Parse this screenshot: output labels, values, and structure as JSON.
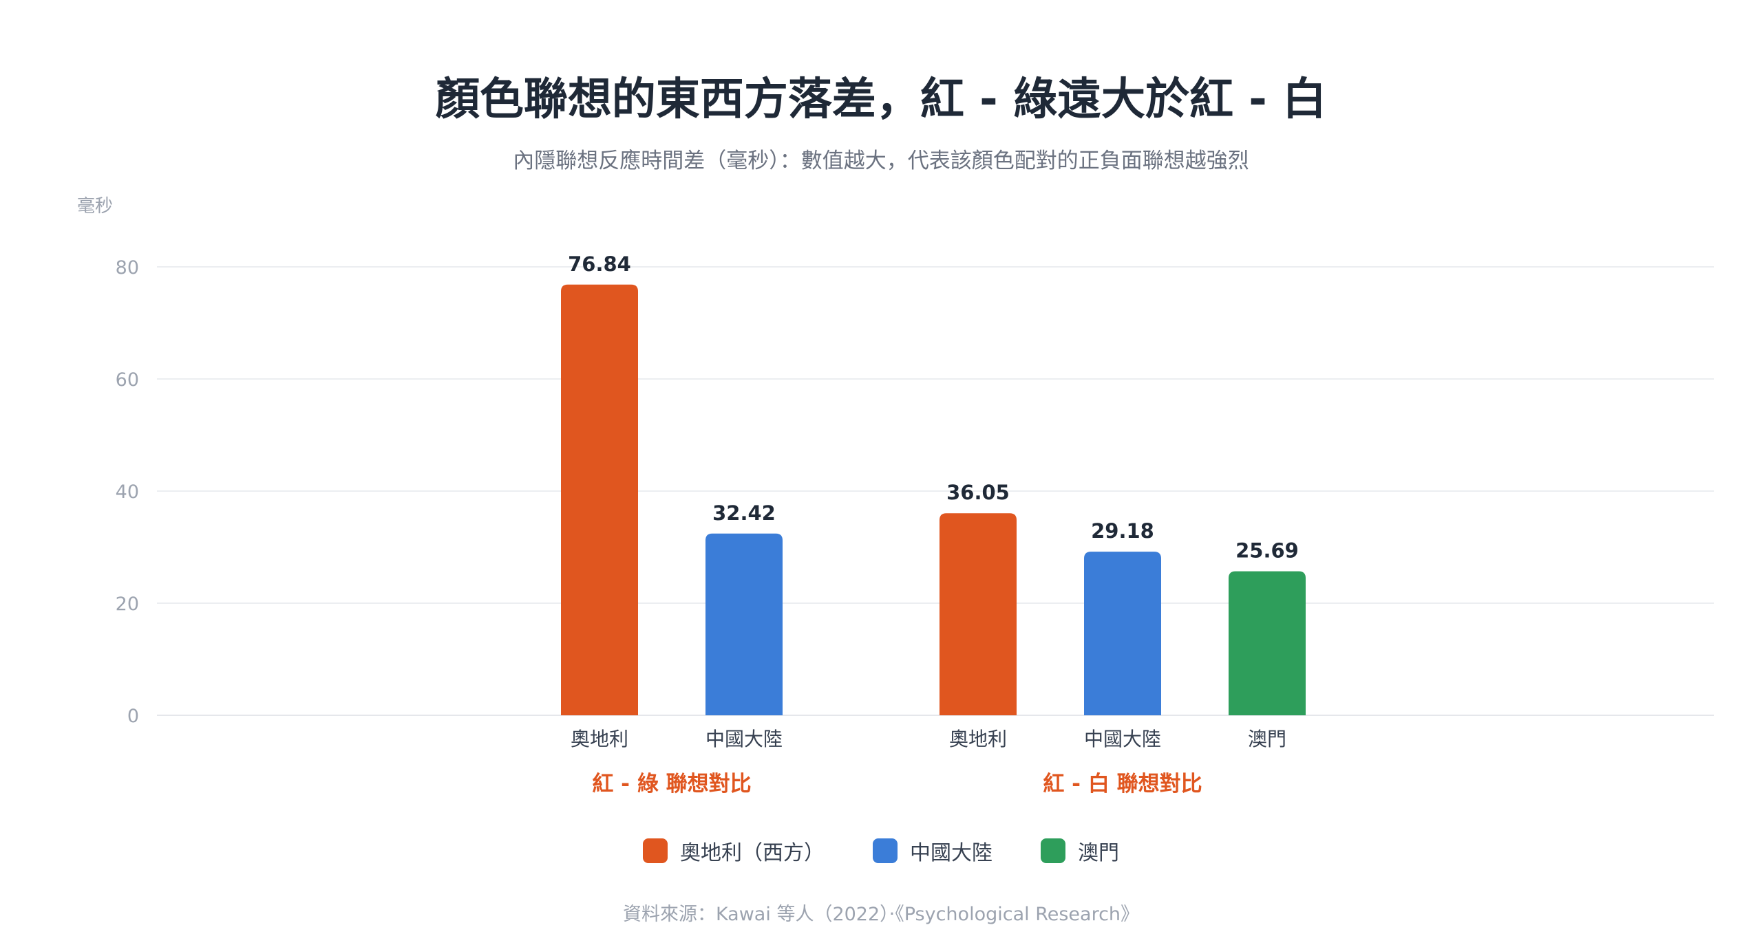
{
  "chart_data": {
    "type": "bar",
    "title": "顏色聯想的東西方落差，紅 - 綠遠大於紅 - 白",
    "subtitle": "內隱聯想反應時間差（毫秒）：數值越大，代表該顏色配對的正負面聯想越強烈",
    "ylabel": "毫秒",
    "ylim": [
      0,
      80
    ],
    "yticks": [
      0,
      20,
      40,
      60,
      80
    ],
    "grid": true,
    "legend_position": "bottom",
    "groups": [
      {
        "label": "紅 - 綠 聯想對比",
        "label_color": "#e0561f",
        "bars": [
          {
            "category": "奧地利",
            "value": 76.84,
            "series": "austria"
          },
          {
            "category": "中國大陸",
            "value": 32.42,
            "series": "china"
          }
        ]
      },
      {
        "label": "紅 - 白 聯想對比",
        "label_color": "#e0561f",
        "bars": [
          {
            "category": "奧地利",
            "value": 36.05,
            "series": "austria"
          },
          {
            "category": "中國大陸",
            "value": 29.18,
            "series": "china"
          },
          {
            "category": "澳門",
            "value": 25.69,
            "series": "macau"
          }
        ]
      }
    ],
    "series": [
      {
        "key": "austria",
        "name": "奧地利（西方）",
        "color": "#e0561f"
      },
      {
        "key": "china",
        "name": "中國大陸",
        "color": "#3b7dd8"
      },
      {
        "key": "macau",
        "name": "澳門",
        "color": "#2e9e5b"
      }
    ]
  },
  "source": "資料來源：Kawai 等人（2022）‧《Psychological Research》"
}
